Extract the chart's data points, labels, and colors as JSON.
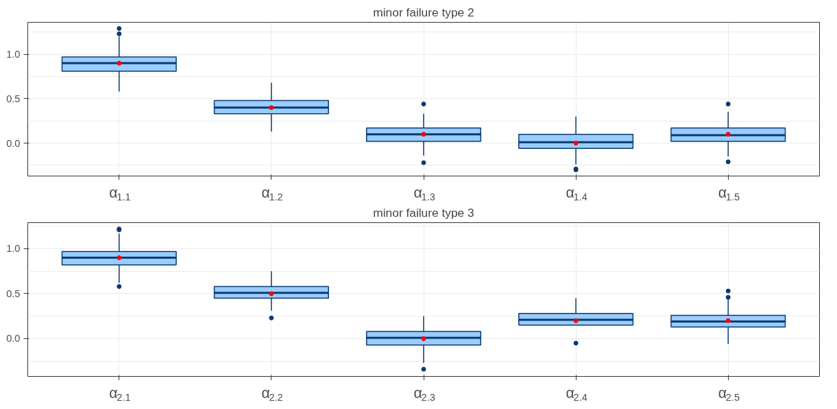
{
  "chart_data": [
    {
      "type": "box",
      "title": "minor failure type 2",
      "categories": [
        "α$_{1,1}$",
        "α$_{1,2}$",
        "α$_{1,3}$",
        "α$_{1,4}$",
        "α$_{1,5}$"
      ],
      "ylim": [
        -0.37,
        1.36
      ],
      "yticks": [
        {
          "value": 0,
          "label": "0.0"
        },
        {
          "value": 0.5,
          "label": "0.5"
        },
        {
          "value": 1,
          "label": "1.0"
        }
      ],
      "grid": true,
      "series": [
        {
          "color": "#99ccff",
          "boxes": [
            {
              "low": 0.58,
              "q1": 0.81,
              "median": 0.9,
              "q3": 0.97,
              "high": 1.2,
              "mean": 0.9,
              "outliers": [
                1.29,
                1.23
              ]
            },
            {
              "low": 0.13,
              "q1": 0.33,
              "median": 0.4,
              "q3": 0.48,
              "high": 0.68,
              "mean": 0.4
            },
            {
              "low": -0.14,
              "q1": 0.02,
              "median": 0.1,
              "q3": 0.17,
              "high": 0.33,
              "mean": 0.1,
              "outliers": [
                0.44,
                -0.22
              ]
            },
            {
              "low": -0.24,
              "q1": -0.06,
              "median": 0.01,
              "q3": 0.1,
              "high": 0.3,
              "mean": 0.0,
              "outliers": [
                -0.29,
                -0.3
              ]
            },
            {
              "low": -0.15,
              "q1": 0.02,
              "median": 0.09,
              "q3": 0.17,
              "high": 0.35,
              "mean": 0.1,
              "outliers": [
                0.44,
                -0.21
              ]
            }
          ]
        }
      ]
    },
    {
      "type": "box",
      "title": "minor failure type 3",
      "categories": [
        "α$_{2,1}$",
        "α$_{2,2}$",
        "α$_{2,3}$",
        "α$_{2,4}$",
        "α$_{2,5}$"
      ],
      "ylim": [
        -0.42,
        1.29
      ],
      "yticks": [
        {
          "value": 0,
          "label": "0.0"
        },
        {
          "value": 0.5,
          "label": "0.5"
        },
        {
          "value": 1,
          "label": "1.0"
        }
      ],
      "grid": true,
      "series": [
        {
          "color": "#99ccff",
          "boxes": [
            {
              "low": 0.62,
              "q1": 0.82,
              "median": 0.9,
              "q3": 0.97,
              "high": 1.17,
              "mean": 0.9,
              "outliers": [
                1.22,
                1.21,
                0.58
              ]
            },
            {
              "low": 0.31,
              "q1": 0.45,
              "median": 0.51,
              "q3": 0.58,
              "high": 0.75,
              "mean": 0.5,
              "outliers": [
                0.23
              ]
            },
            {
              "low": -0.27,
              "q1": -0.07,
              "median": 0.01,
              "q3": 0.08,
              "high": 0.25,
              "mean": 0.0,
              "outliers": [
                -0.34
              ]
            },
            {
              "low": 0.15,
              "q1": 0.15,
              "median": 0.21,
              "q3": 0.28,
              "high": 0.45,
              "mean": 0.2,
              "outliers": [
                -0.05
              ]
            },
            {
              "low": -0.06,
              "q1": 0.13,
              "median": 0.19,
              "q3": 0.26,
              "high": 0.46,
              "mean": 0.2,
              "outliers": [
                0.53,
                0.46
              ]
            }
          ]
        }
      ]
    }
  ]
}
